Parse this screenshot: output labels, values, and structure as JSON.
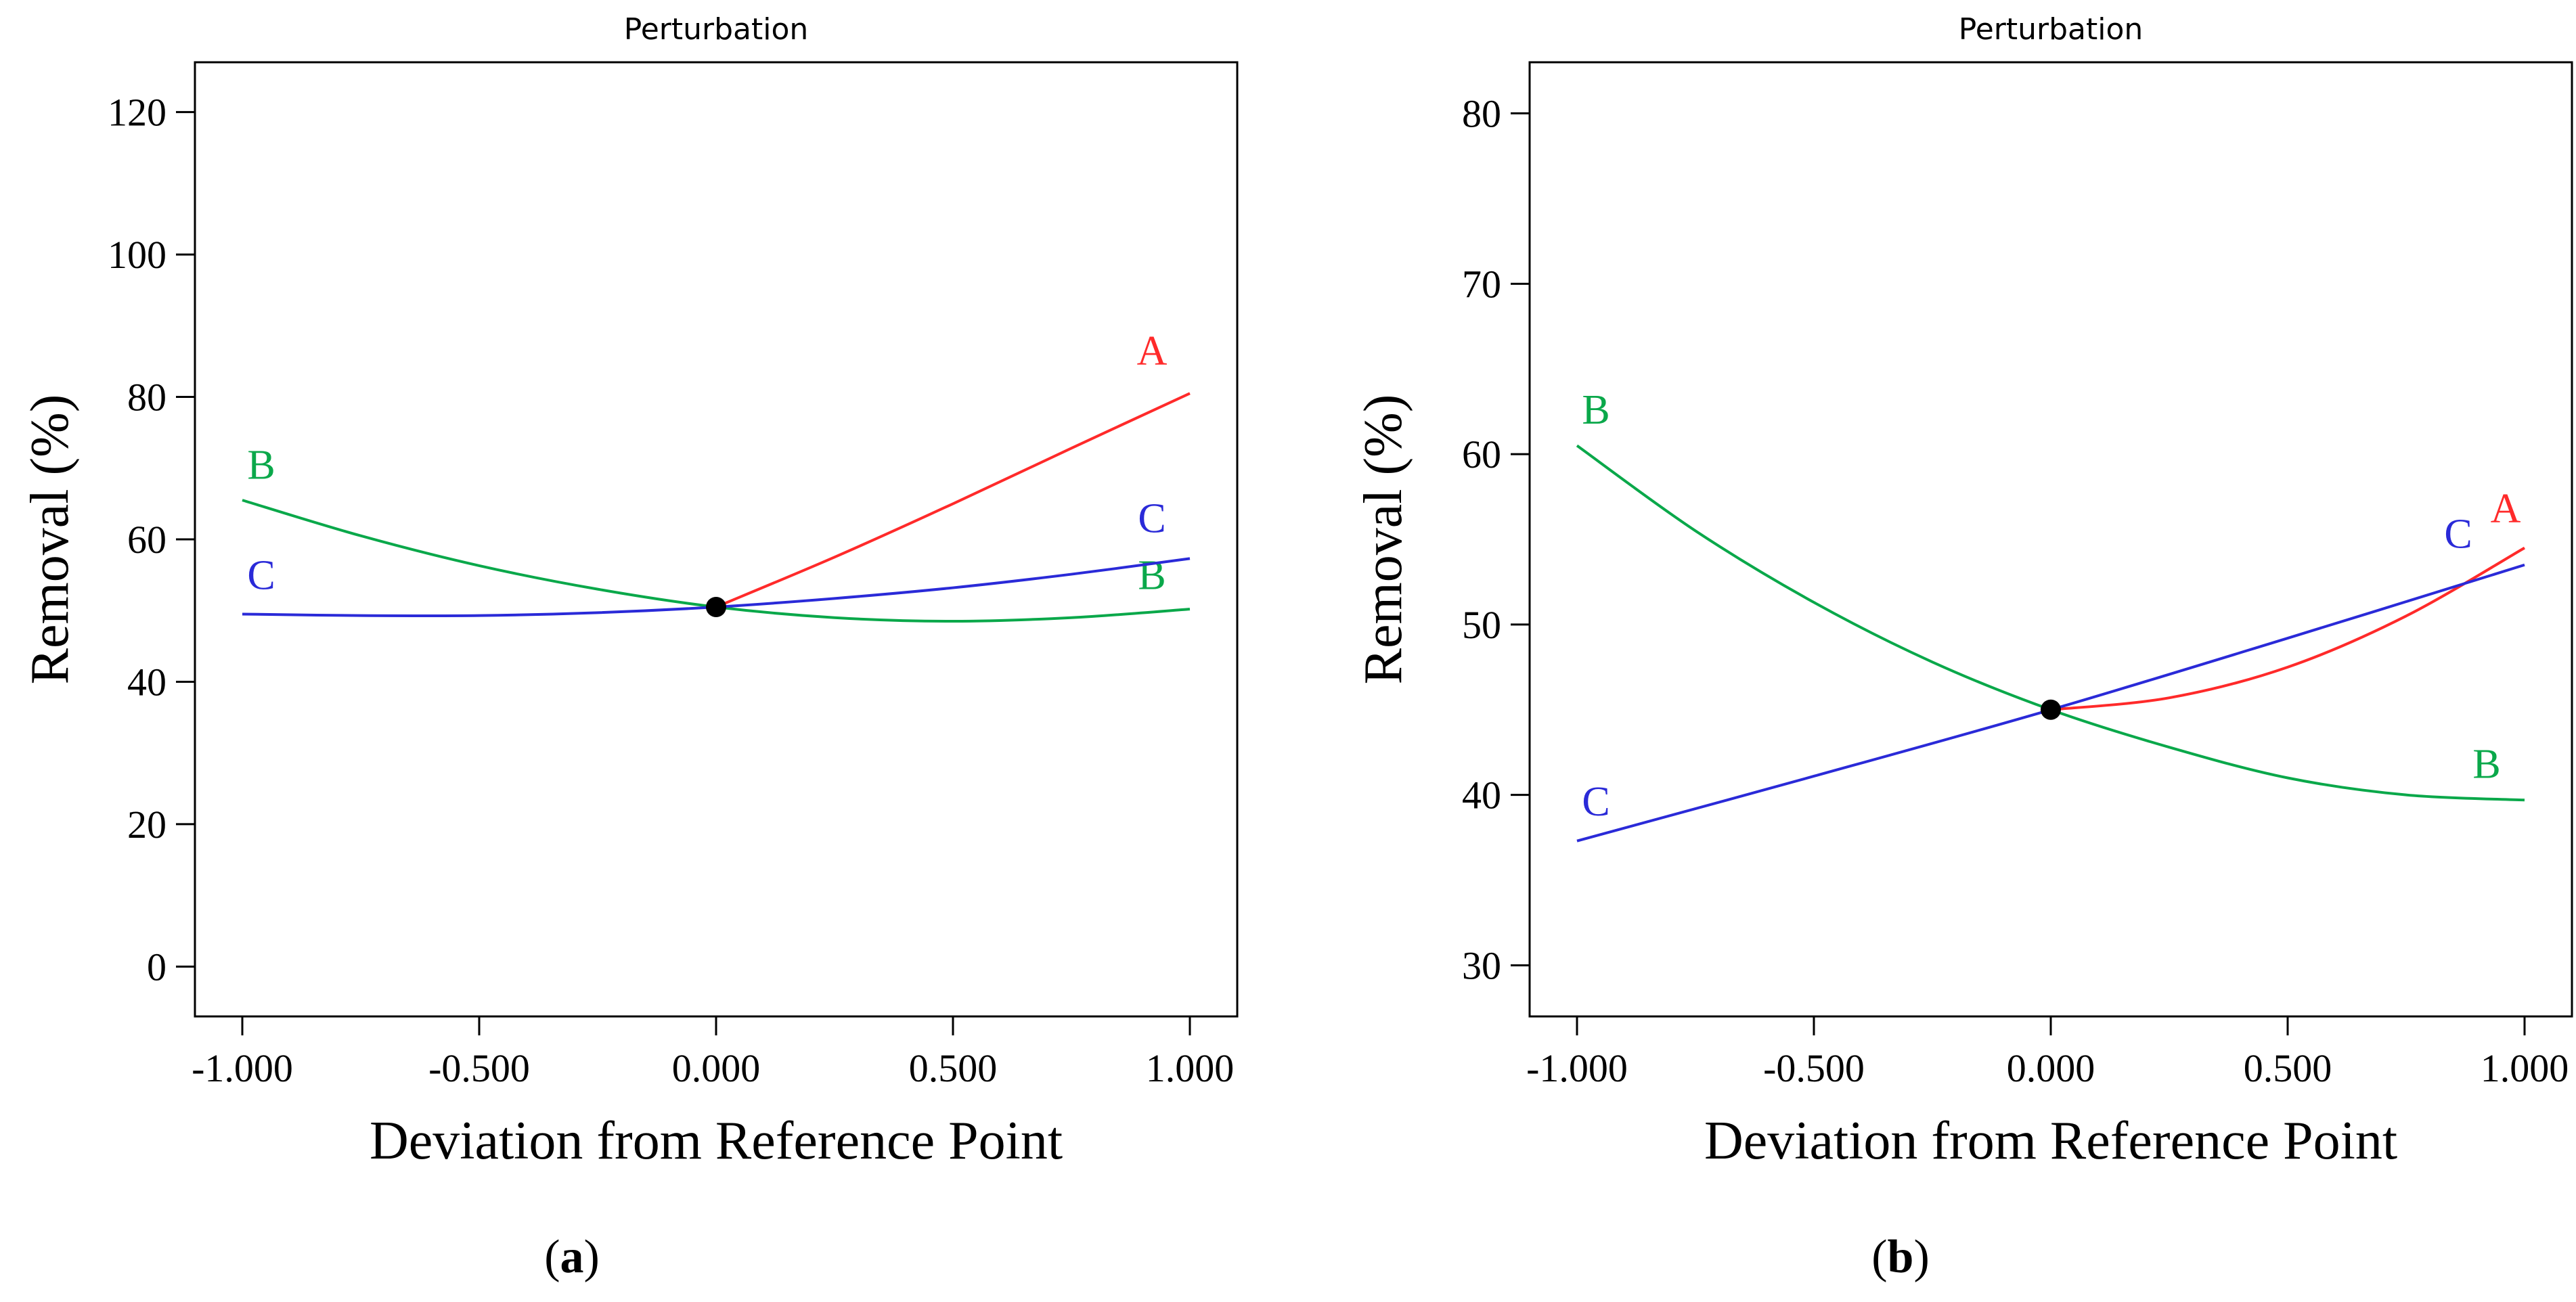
{
  "chart_data": [
    {
      "type": "line",
      "panel_label": "a",
      "title": "Perturbation",
      "xlabel": "Deviation from Reference Point",
      "ylabel": "Removal (%)",
      "xlim": [
        -1.1,
        1.1
      ],
      "ylim": [
        -7,
        127
      ],
      "xticks": [
        -1.0,
        -0.5,
        0.0,
        0.5,
        1.0
      ],
      "xtick_labels": [
        "-1.000",
        "-0.500",
        "0.000",
        "0.500",
        "1.000"
      ],
      "yticks": [
        0,
        20,
        40,
        60,
        80,
        100,
        120
      ],
      "ytick_labels": [
        "0",
        "20",
        "40",
        "60",
        "80",
        "100",
        "120"
      ],
      "reference_point": {
        "x": 0.0,
        "y": 50.5
      },
      "series": [
        {
          "name": "A",
          "color": "#ff2a2a",
          "x": [
            0.0,
            0.25,
            0.5,
            0.75,
            1.0
          ],
          "y": [
            50.5,
            57.5,
            65.0,
            72.8,
            80.5
          ],
          "labels": [
            {
              "text": "A",
              "x": 0.92,
              "y": 84.5
            }
          ]
        },
        {
          "name": "B",
          "color": "#0aa84a",
          "x": [
            -1.0,
            -0.75,
            -0.5,
            -0.25,
            0.0,
            0.25,
            0.5,
            0.75,
            1.0
          ],
          "y": [
            65.5,
            60.5,
            56.3,
            53.0,
            50.5,
            49.0,
            48.5,
            49.0,
            50.2
          ],
          "labels": [
            {
              "text": "B",
              "x": -0.96,
              "y": 68.5
            },
            {
              "text": "B",
              "x": 0.92,
              "y": 53.0
            }
          ]
        },
        {
          "name": "C",
          "color": "#2a2ad8",
          "x": [
            -1.0,
            -0.75,
            -0.5,
            -0.25,
            0.0,
            0.25,
            0.5,
            0.75,
            1.0
          ],
          "y": [
            49.5,
            49.3,
            49.3,
            49.7,
            50.5,
            51.7,
            53.2,
            55.1,
            57.3
          ],
          "labels": [
            {
              "text": "C",
              "x": -0.96,
              "y": 53.0
            },
            {
              "text": "C",
              "x": 0.92,
              "y": 61.0
            }
          ]
        }
      ]
    },
    {
      "type": "line",
      "panel_label": "b",
      "title": "Perturbation",
      "xlabel": "Deviation from Reference Point",
      "ylabel": "Removal (%)",
      "xlim": [
        -1.1,
        1.1
      ],
      "ylim": [
        27,
        83
      ],
      "xticks": [
        -1.0,
        -0.5,
        0.0,
        0.5,
        1.0
      ],
      "xtick_labels": [
        "-1.000",
        "-0.500",
        "0.000",
        "0.500",
        "1.000"
      ],
      "yticks": [
        30,
        40,
        50,
        60,
        70,
        80
      ],
      "ytick_labels": [
        "30",
        "40",
        "50",
        "60",
        "70",
        "80"
      ],
      "reference_point": {
        "x": 0.0,
        "y": 45.0
      },
      "series": [
        {
          "name": "A",
          "color": "#ff2a2a",
          "x": [
            0.0,
            0.25,
            0.5,
            0.75,
            1.0
          ],
          "y": [
            45.0,
            45.7,
            47.5,
            50.5,
            54.5
          ],
          "labels": [
            {
              "text": "A",
              "x": 0.96,
              "y": 56.0
            }
          ]
        },
        {
          "name": "B",
          "color": "#0aa84a",
          "x": [
            -1.0,
            -0.75,
            -0.5,
            -0.25,
            0.0,
            0.25,
            0.5,
            0.75,
            1.0
          ],
          "y": [
            60.5,
            55.5,
            51.3,
            47.8,
            45.0,
            42.8,
            41.0,
            40.0,
            39.7
          ],
          "labels": [
            {
              "text": "B",
              "x": -0.96,
              "y": 61.8
            },
            {
              "text": "B",
              "x": 0.92,
              "y": 41.0
            }
          ]
        },
        {
          "name": "C",
          "color": "#2a2ad8",
          "x": [
            -1.0,
            -0.5,
            0.0,
            0.5,
            1.0
          ],
          "y": [
            37.3,
            41.1,
            45.0,
            49.2,
            53.5
          ],
          "labels": [
            {
              "text": "C",
              "x": -0.96,
              "y": 38.8
            },
            {
              "text": "C",
              "x": 0.86,
              "y": 54.5
            }
          ]
        }
      ]
    }
  ]
}
